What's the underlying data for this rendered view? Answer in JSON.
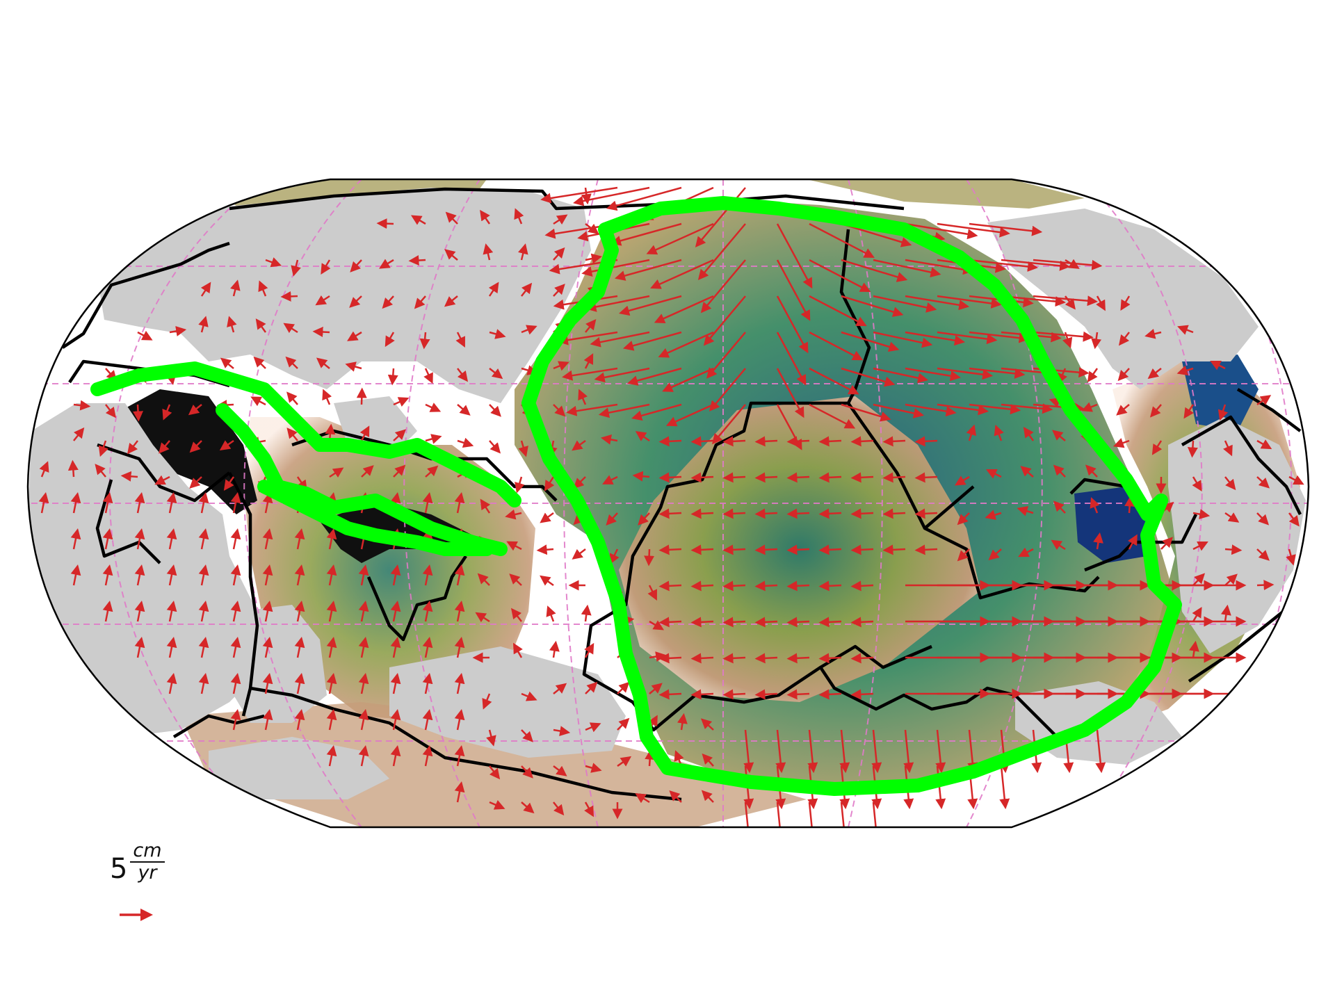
{
  "map": {
    "projection": "Robinson",
    "graticule_color": "#e07ac8",
    "land_color": "#cccccc",
    "boundary_color": "#000000",
    "subduction_zone_color": "#00ff00",
    "velocity_arrow_color": "#d62728",
    "seafloor_colormap": [
      "#0b1f5c",
      "#2f7a68",
      "#8ea04c",
      "#c69c7a",
      "#fbeee6"
    ]
  },
  "legend": {
    "scale_value": "5",
    "unit_numerator": "cm",
    "unit_denominator": "yr",
    "arrow_icon": "right-arrow-icon"
  }
}
